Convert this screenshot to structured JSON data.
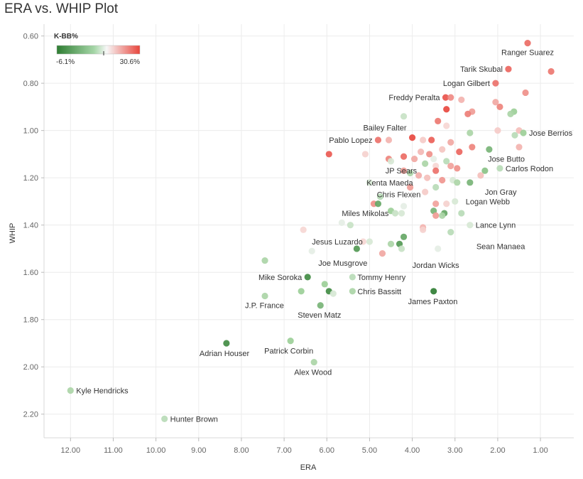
{
  "title": "ERA vs. WHIP Plot",
  "chart_data": {
    "type": "scatter",
    "title": "ERA vs. WHIP Plot",
    "xlabel": "ERA",
    "ylabel": "WHIP",
    "xlim": [
      12.62,
      0.22
    ],
    "ylim": [
      0.55,
      2.3
    ],
    "x_reversed": true,
    "y_reversed": true,
    "grid": true,
    "x_ticks": [
      12,
      11,
      10,
      9,
      8,
      7,
      6,
      5,
      4,
      3,
      2,
      1
    ],
    "y_ticks": [
      0.6,
      0.8,
      1.0,
      1.2,
      1.4,
      1.6,
      1.8,
      2.0,
      2.2
    ],
    "color_legend": {
      "title": "K-BB%",
      "min_label": "-6.1%",
      "max_label": "30.6%",
      "min": -6.1,
      "max": 30.6,
      "placement": "top-left",
      "low_color": "#2e7d32",
      "mid_color": "#f4f4f4",
      "high_color": "#e8453c"
    },
    "points": [
      {
        "era": 1.3,
        "whip": 0.63,
        "kbb": 24,
        "name": "Ranger Suarez"
      },
      {
        "era": 1.75,
        "whip": 0.74,
        "kbb": 25,
        "name": "Tarik Skubal"
      },
      {
        "era": 0.75,
        "whip": 0.75,
        "kbb": 22
      },
      {
        "era": 2.05,
        "whip": 0.8,
        "kbb": 23,
        "name": "Logan Gilbert"
      },
      {
        "era": 1.35,
        "whip": 0.84,
        "kbb": 18
      },
      {
        "era": 3.22,
        "whip": 0.86,
        "kbb": 28,
        "name": "Freddy Peralta"
      },
      {
        "era": 3.1,
        "whip": 0.86,
        "kbb": 19
      },
      {
        "era": 2.85,
        "whip": 0.87,
        "kbb": 12
      },
      {
        "era": 2.05,
        "whip": 0.88,
        "kbb": 14
      },
      {
        "era": 1.95,
        "whip": 0.9,
        "kbb": 20
      },
      {
        "era": 3.2,
        "whip": 0.91,
        "kbb": 30
      },
      {
        "era": 2.6,
        "whip": 0.92,
        "kbb": 16
      },
      {
        "era": 2.7,
        "whip": 0.93,
        "kbb": 21
      },
      {
        "era": 1.62,
        "whip": 0.92,
        "kbb": 0
      },
      {
        "era": 1.7,
        "whip": 0.93,
        "kbb": 1
      },
      {
        "era": 4.2,
        "whip": 0.94,
        "kbb": 3
      },
      {
        "era": 3.4,
        "whip": 0.96,
        "kbb": 22
      },
      {
        "era": 3.2,
        "whip": 0.98,
        "kbb": 6
      },
      {
        "era": 2.0,
        "whip": 1.0,
        "kbb": 8
      },
      {
        "era": 1.5,
        "whip": 1.0,
        "kbb": 10
      },
      {
        "era": 1.4,
        "whip": 1.01,
        "kbb": 0,
        "name": "Jose Berrios"
      },
      {
        "era": 2.65,
        "whip": 1.01,
        "kbb": 1
      },
      {
        "era": 1.6,
        "whip": 1.02,
        "kbb": 2
      },
      {
        "era": 4.0,
        "whip": 1.03,
        "kbb": 30,
        "name": "Bailey Falter"
      },
      {
        "era": 3.75,
        "whip": 1.04,
        "kbb": 8
      },
      {
        "era": 4.8,
        "whip": 1.04,
        "kbb": 23,
        "name": "Pablo Lopez"
      },
      {
        "era": 4.55,
        "whip": 1.04,
        "kbb": 12
      },
      {
        "era": 3.55,
        "whip": 1.04,
        "kbb": 26
      },
      {
        "era": 3.1,
        "whip": 1.05,
        "kbb": 14
      },
      {
        "era": 2.6,
        "whip": 1.07,
        "kbb": 20
      },
      {
        "era": 2.2,
        "whip": 1.08,
        "kbb": -2
      },
      {
        "era": 1.5,
        "whip": 1.07,
        "kbb": 12
      },
      {
        "era": 3.3,
        "whip": 1.08,
        "kbb": 9
      },
      {
        "era": 2.9,
        "whip": 1.09,
        "kbb": 25
      },
      {
        "era": 3.8,
        "whip": 1.09,
        "kbb": 11
      },
      {
        "era": 3.6,
        "whip": 1.1,
        "kbb": 18
      },
      {
        "era": 5.95,
        "whip": 1.1,
        "kbb": 27
      },
      {
        "era": 5.1,
        "whip": 1.1,
        "kbb": 7
      },
      {
        "era": 4.2,
        "whip": 1.11,
        "kbb": 24
      },
      {
        "era": 3.95,
        "whip": 1.12,
        "kbb": 14
      },
      {
        "era": 4.55,
        "whip": 1.12,
        "kbb": 20
      },
      {
        "era": 4.5,
        "whip": 1.13,
        "kbb": 4
      },
      {
        "era": 3.5,
        "whip": 1.12,
        "kbb": 5
      },
      {
        "era": 3.2,
        "whip": 1.13,
        "kbb": 2
      },
      {
        "era": 3.7,
        "whip": 1.14,
        "kbb": 1
      },
      {
        "era": 3.1,
        "whip": 1.15,
        "kbb": 15
      },
      {
        "era": 3.45,
        "whip": 1.15,
        "kbb": 6
      },
      {
        "era": 2.95,
        "whip": 1.16,
        "kbb": 18
      },
      {
        "era": 1.95,
        "whip": 1.16,
        "kbb": 2,
        "name": "Carlos Rodon"
      },
      {
        "era": 2.3,
        "whip": 1.17,
        "kbb": -1
      },
      {
        "era": 4.2,
        "whip": 1.17,
        "kbb": 16
      },
      {
        "era": 4.05,
        "whip": 1.18,
        "kbb": 1
      },
      {
        "era": 3.45,
        "whip": 1.17,
        "kbb": 23
      },
      {
        "era": 3.85,
        "whip": 1.19,
        "kbb": 13
      },
      {
        "era": 2.4,
        "whip": 1.19,
        "kbb": 10
      },
      {
        "era": 3.65,
        "whip": 1.2,
        "kbb": 10
      },
      {
        "era": 3.3,
        "whip": 1.21,
        "kbb": 17
      },
      {
        "era": 3.05,
        "whip": 1.21,
        "kbb": 4
      },
      {
        "era": 2.95,
        "whip": 1.22,
        "kbb": 1
      },
      {
        "era": 2.65,
        "whip": 1.22,
        "kbb": -2
      },
      {
        "era": 5.0,
        "whip": 1.22,
        "kbb": 4
      },
      {
        "era": 3.45,
        "whip": 1.24,
        "kbb": 2
      },
      {
        "era": 4.05,
        "whip": 1.24,
        "kbb": 16
      },
      {
        "era": 3.7,
        "whip": 1.26,
        "kbb": 8
      },
      {
        "era": 4.75,
        "whip": 1.28,
        "kbb": 2
      },
      {
        "era": 4.9,
        "whip": 1.31,
        "kbb": 18
      },
      {
        "era": 4.8,
        "whip": 1.31,
        "kbb": -3
      },
      {
        "era": 3.0,
        "whip": 1.3,
        "kbb": 4
      },
      {
        "era": 3.2,
        "whip": 1.31,
        "kbb": 7
      },
      {
        "era": 3.45,
        "whip": 1.31,
        "kbb": 15
      },
      {
        "era": 4.2,
        "whip": 1.32,
        "kbb": 5
      },
      {
        "era": 4.5,
        "whip": 1.34,
        "kbb": 0
      },
      {
        "era": 3.5,
        "whip": 1.34,
        "kbb": -2
      },
      {
        "era": 4.4,
        "whip": 1.35,
        "kbb": 3
      },
      {
        "era": 4.25,
        "whip": 1.35,
        "kbb": 4
      },
      {
        "era": 3.25,
        "whip": 1.35,
        "kbb": -3
      },
      {
        "era": 2.85,
        "whip": 1.35,
        "kbb": 2
      },
      {
        "era": 3.45,
        "whip": 1.36,
        "kbb": 16
      },
      {
        "era": 3.3,
        "whip": 1.36,
        "kbb": 1
      },
      {
        "era": 5.65,
        "whip": 1.39,
        "kbb": 5
      },
      {
        "era": 5.45,
        "whip": 1.4,
        "kbb": 3
      },
      {
        "era": 2.65,
        "whip": 1.4,
        "kbb": 4,
        "name": "Lance Lynn"
      },
      {
        "era": 3.75,
        "whip": 1.41,
        "kbb": 12
      },
      {
        "era": 3.75,
        "whip": 1.42,
        "kbb": 7
      },
      {
        "era": 6.55,
        "whip": 1.42,
        "kbb": 6
      },
      {
        "era": 3.1,
        "whip": 1.43,
        "kbb": 2
      },
      {
        "era": 4.2,
        "whip": 1.45,
        "kbb": -3
      },
      {
        "era": 5.0,
        "whip": 1.47,
        "kbb": 4
      },
      {
        "era": 5.15,
        "whip": 1.47,
        "kbb": 6
      },
      {
        "era": 4.5,
        "whip": 1.48,
        "kbb": 1
      },
      {
        "era": 4.3,
        "whip": 1.48,
        "kbb": -4
      },
      {
        "era": 5.3,
        "whip": 1.5,
        "kbb": -4
      },
      {
        "era": 4.25,
        "whip": 1.5,
        "kbb": 3
      },
      {
        "era": 6.35,
        "whip": 1.51,
        "kbb": 5
      },
      {
        "era": 4.7,
        "whip": 1.52,
        "kbb": 14
      },
      {
        "era": 3.4,
        "whip": 1.5,
        "kbb": 5
      },
      {
        "era": 7.45,
        "whip": 1.55,
        "kbb": 1
      },
      {
        "era": 6.45,
        "whip": 1.62,
        "kbb": -5,
        "name": "Mike Soroka"
      },
      {
        "era": 5.4,
        "whip": 1.62,
        "kbb": 2,
        "name": "Tommy Henry"
      },
      {
        "era": 6.05,
        "whip": 1.65,
        "kbb": 0
      },
      {
        "era": 3.5,
        "whip": 1.68,
        "kbb": -6,
        "name": "James Paxton"
      },
      {
        "era": 6.6,
        "whip": 1.68,
        "kbb": 0
      },
      {
        "era": 5.95,
        "whip": 1.68,
        "kbb": -5
      },
      {
        "era": 5.4,
        "whip": 1.68,
        "kbb": 1,
        "name": "Chris Bassitt"
      },
      {
        "era": 5.85,
        "whip": 1.69,
        "kbb": 4
      },
      {
        "era": 7.45,
        "whip": 1.7,
        "kbb": 1,
        "name": "J.P. France"
      },
      {
        "era": 6.15,
        "whip": 1.74,
        "kbb": -2,
        "name": "Steven Matz"
      },
      {
        "era": 8.35,
        "whip": 1.9,
        "kbb": -5,
        "name": "Adrian Houser"
      },
      {
        "era": 6.85,
        "whip": 1.89,
        "kbb": 0,
        "name": "Patrick Corbin"
      },
      {
        "era": 6.3,
        "whip": 1.98,
        "kbb": 1,
        "name": "Alex Wood"
      },
      {
        "era": 12.0,
        "whip": 2.1,
        "kbb": 1,
        "name": "Kyle Hendricks"
      },
      {
        "era": 9.8,
        "whip": 2.22,
        "kbb": 2,
        "name": "Hunter Brown"
      }
    ],
    "annotations": [
      {
        "text": "Jose Butto",
        "era": 2.23,
        "whip": 1.12
      },
      {
        "text": "JP Sears",
        "era": 4.63,
        "whip": 1.17
      },
      {
        "text": "Kenta Maeda",
        "era": 5.07,
        "whip": 1.22
      },
      {
        "text": "Jon Gray",
        "era": 2.3,
        "whip": 1.26
      },
      {
        "text": "Chris Flexen",
        "era": 4.83,
        "whip": 1.27
      },
      {
        "text": "Logan Webb",
        "era": 2.75,
        "whip": 1.3
      },
      {
        "text": "Miles Mikolas",
        "era": 5.65,
        "whip": 1.35
      },
      {
        "text": "Sean Manaea",
        "era": 2.5,
        "whip": 1.49
      },
      {
        "text": "Jesus Luzardo",
        "era": 6.35,
        "whip": 1.47
      },
      {
        "text": "Joe Musgrove",
        "era": 6.2,
        "whip": 1.56
      },
      {
        "text": "Jordan Wicks",
        "era": 4.0,
        "whip": 1.57
      }
    ]
  }
}
